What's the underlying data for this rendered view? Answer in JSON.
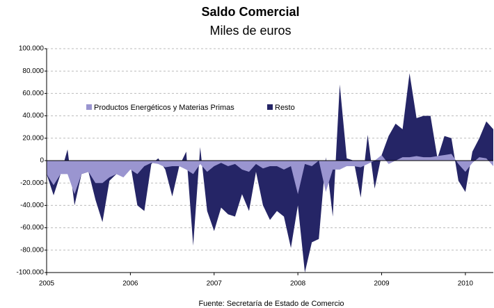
{
  "chart_data": {
    "type": "area",
    "title": "Saldo Comercial",
    "subtitle": "Miles de euros",
    "source": "Fuente: Secretaría de Estado de Comercio",
    "categories": [
      "2005",
      null,
      null,
      null,
      null,
      null,
      null,
      null,
      null,
      null,
      null,
      null,
      "2006",
      null,
      null,
      null,
      null,
      null,
      null,
      null,
      null,
      null,
      null,
      null,
      "2007",
      null,
      null,
      null,
      null,
      null,
      null,
      null,
      null,
      null,
      null,
      null,
      "2008",
      null,
      null,
      null,
      null,
      null,
      null,
      null,
      null,
      null,
      null,
      null,
      "2009",
      null,
      null,
      null,
      null,
      null,
      null,
      null,
      null,
      null,
      null,
      null,
      "2010",
      null,
      null,
      null,
      null
    ],
    "series": [
      {
        "name": "Resto",
        "color": "#252566",
        "values": [
          -12,
          -31,
          -12,
          10,
          -40,
          -12,
          -10,
          -35,
          -55,
          -18,
          -12,
          -14,
          -3,
          -40,
          -45,
          -3,
          2,
          -8,
          -32,
          -5,
          8,
          -76,
          12,
          -45,
          -63,
          -42,
          -48,
          -50,
          -30,
          -45,
          -10,
          -40,
          -53,
          -45,
          -50,
          -78,
          -40,
          -100,
          -73,
          -70,
          3,
          -50,
          68,
          2,
          0,
          -33,
          23,
          -25,
          5,
          22,
          33,
          28,
          78,
          38,
          40,
          40,
          2,
          22,
          20,
          -18,
          -28,
          8,
          20,
          35,
          28
        ]
      },
      {
        "name": "Productos Energéticos y Materias Primas",
        "color": "#9a95d0",
        "values": [
          -12,
          -22,
          -12,
          -12,
          -30,
          -12,
          -10,
          -20,
          -20,
          -15,
          -12,
          -15,
          -8,
          -12,
          -5,
          -2,
          -3,
          -6,
          -5,
          -5,
          -8,
          -12,
          -3,
          -10,
          -5,
          -2,
          -5,
          -3,
          -8,
          -10,
          -3,
          -7,
          -5,
          -5,
          -8,
          -5,
          -30,
          -3,
          -5,
          0,
          -28,
          -8,
          -8,
          -5,
          -5,
          -6,
          -3,
          0,
          5,
          -3,
          0,
          3,
          3,
          4,
          3,
          3,
          4,
          5,
          6,
          -3,
          -10,
          -2,
          3,
          2,
          -5
        ]
      }
    ],
    "ylim": [
      -100000,
      100000
    ],
    "yunit_scale": 1000,
    "yticks": [
      {
        "value": -100000,
        "label": "-100.000"
      },
      {
        "value": -80000,
        "label": "-80.000"
      },
      {
        "value": -60000,
        "label": "-60.000"
      },
      {
        "value": -40000,
        "label": "-40.000"
      },
      {
        "value": -20000,
        "label": "-20.000"
      },
      0,
      {
        "value": 20000,
        "label": "20.000"
      },
      {
        "value": 40000,
        "label": "40.000"
      },
      {
        "value": 60000,
        "label": "60.000"
      },
      {
        "value": 80000,
        "label": "80.000"
      },
      {
        "value": 100000,
        "label": "100.000"
      }
    ],
    "grid": true
  }
}
